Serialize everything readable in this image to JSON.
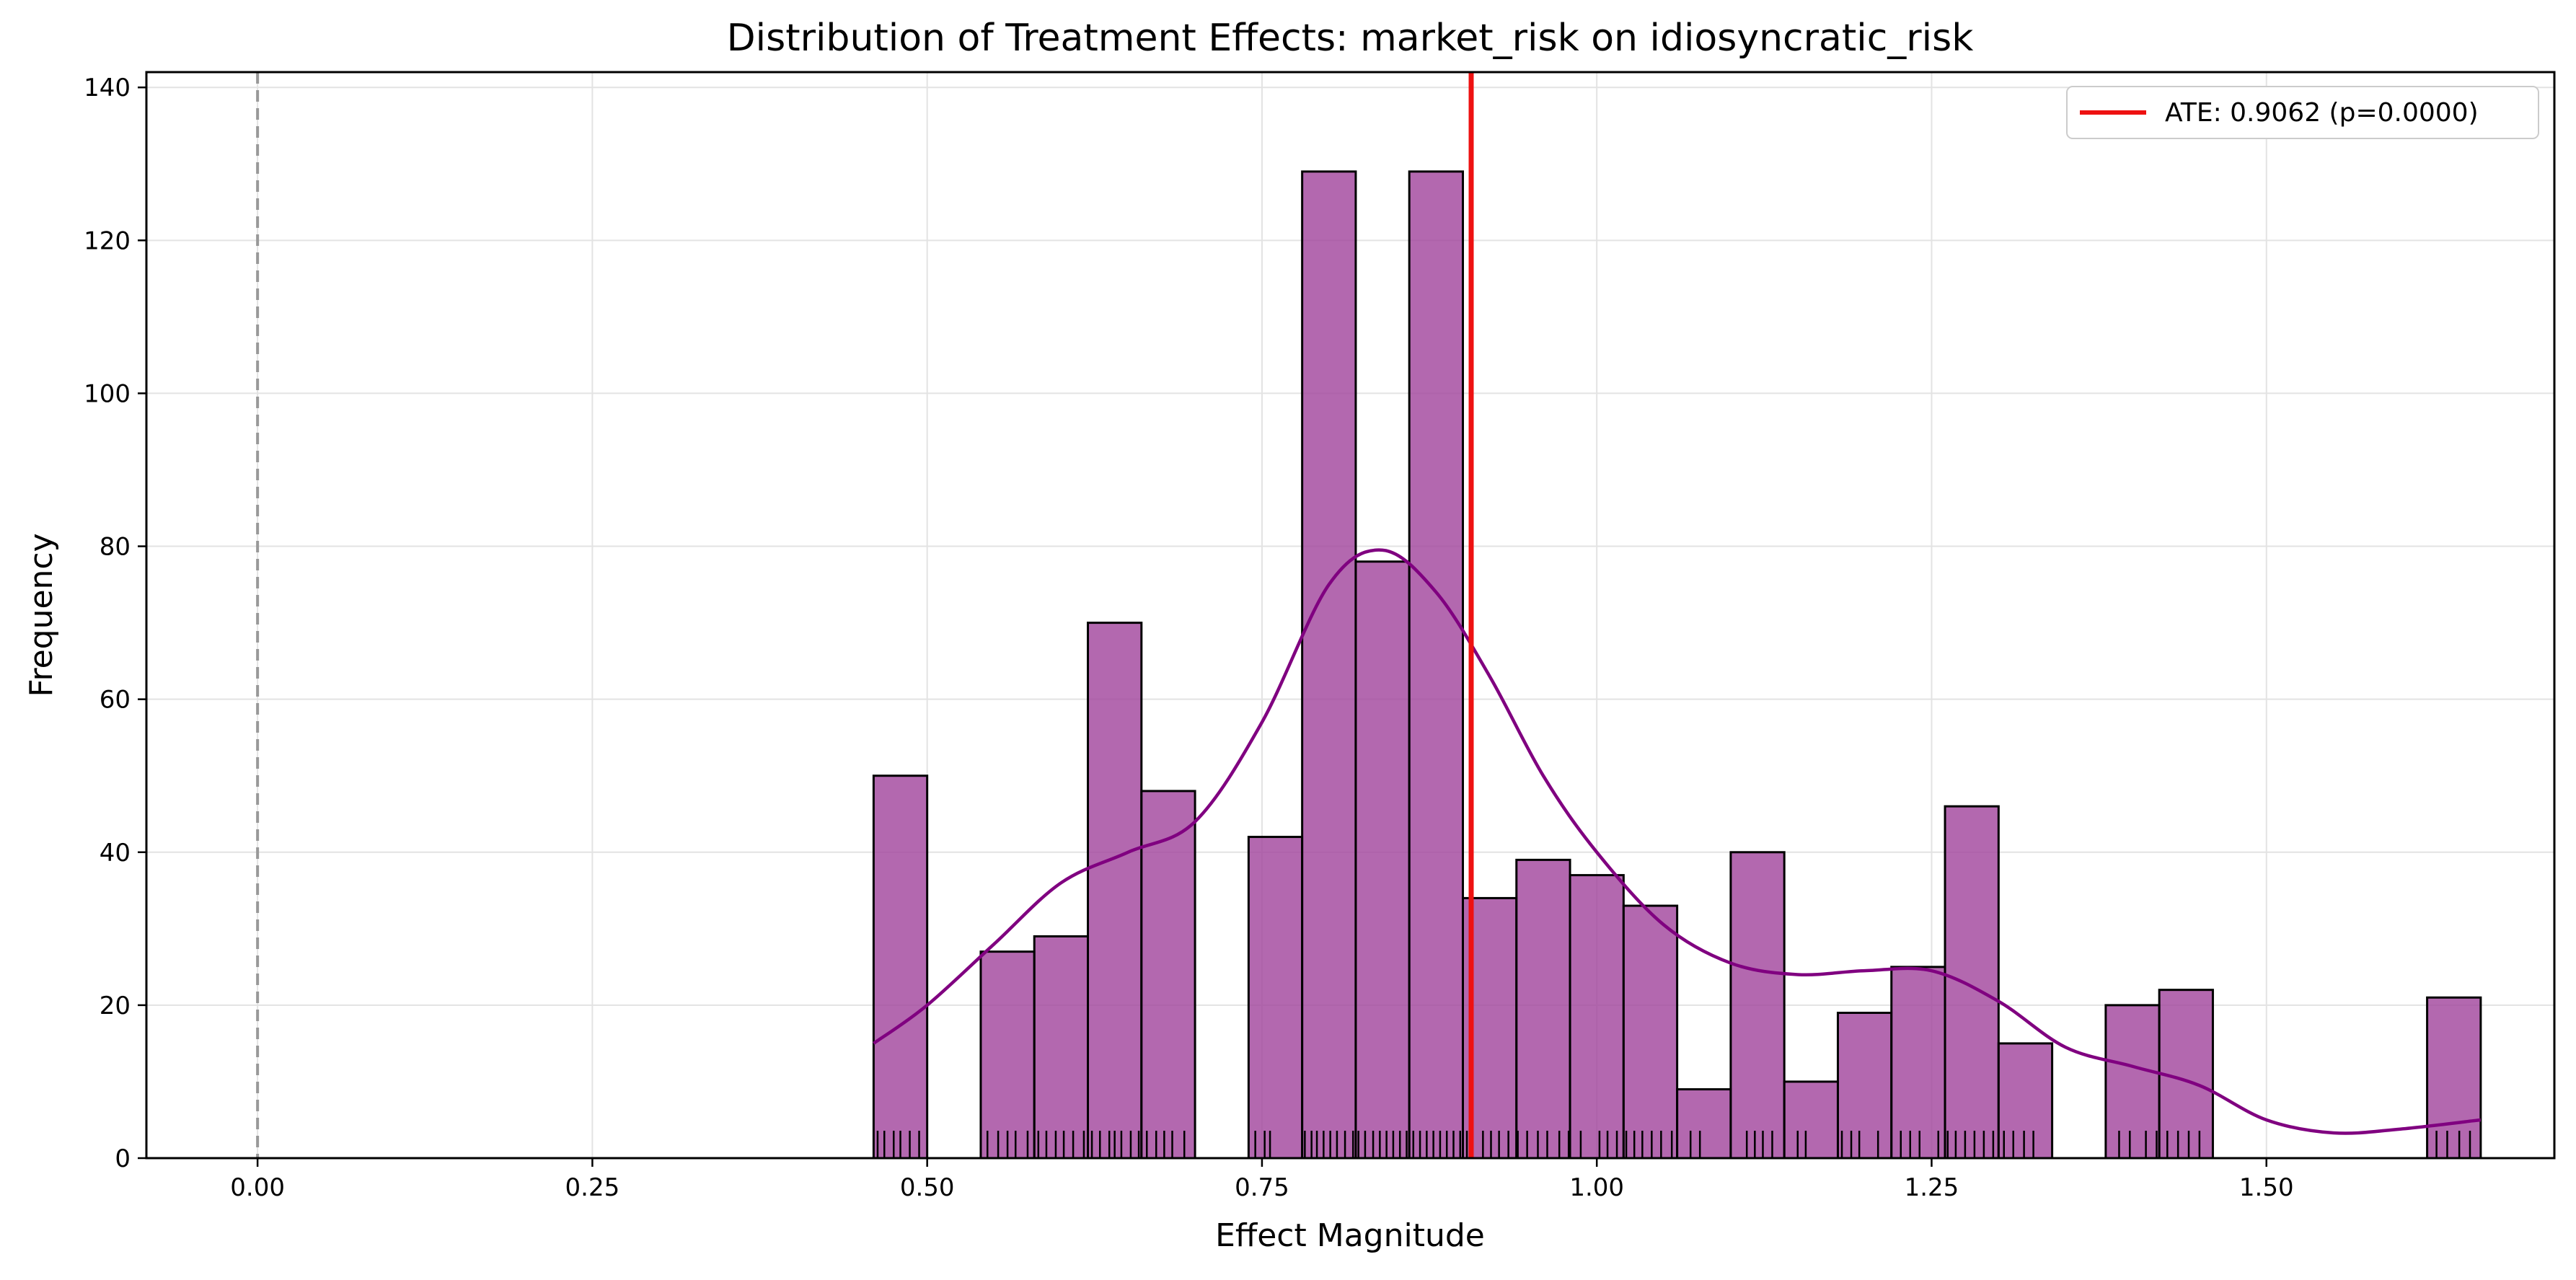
{
  "chart_data": {
    "type": "bar",
    "title": "Distribution of Treatment Effects: market_risk on idiosyncratic_risk",
    "xlabel": "Effect Magnitude",
    "ylabel": "Frequency",
    "xlim": [
      -0.083,
      1.715
    ],
    "ylim": [
      0,
      142
    ],
    "grid": true,
    "legend_placement": "top-right",
    "x_ticks": [
      0.0,
      0.25,
      0.5,
      0.75,
      1.0,
      1.25,
      1.5
    ],
    "x_tick_labels": [
      "0.00",
      "0.25",
      "0.50",
      "0.75",
      "1.00",
      "1.25",
      "1.50"
    ],
    "y_ticks": [
      0,
      20,
      40,
      60,
      80,
      100,
      120,
      140
    ],
    "y_tick_labels": [
      "0",
      "20",
      "40",
      "60",
      "80",
      "100",
      "120",
      "140"
    ],
    "bin_width": 0.04,
    "bins": [
      {
        "x0": 0.46,
        "value": 50
      },
      {
        "x0": 0.5,
        "value": 0
      },
      {
        "x0": 0.54,
        "value": 27
      },
      {
        "x0": 0.58,
        "value": 29
      },
      {
        "x0": 0.62,
        "value": 70
      },
      {
        "x0": 0.66,
        "value": 48
      },
      {
        "x0": 0.7,
        "value": 0
      },
      {
        "x0": 0.74,
        "value": 42
      },
      {
        "x0": 0.78,
        "value": 129
      },
      {
        "x0": 0.82,
        "value": 78
      },
      {
        "x0": 0.86,
        "value": 129
      },
      {
        "x0": 0.9,
        "value": 34
      },
      {
        "x0": 0.94,
        "value": 39
      },
      {
        "x0": 0.98,
        "value": 37
      },
      {
        "x0": 1.02,
        "value": 33
      },
      {
        "x0": 1.06,
        "value": 9
      },
      {
        "x0": 1.1,
        "value": 40
      },
      {
        "x0": 1.14,
        "value": 10
      },
      {
        "x0": 1.18,
        "value": 19
      },
      {
        "x0": 1.22,
        "value": 25
      },
      {
        "x0": 1.26,
        "value": 46
      },
      {
        "x0": 1.3,
        "value": 15
      },
      {
        "x0": 1.34,
        "value": 0
      },
      {
        "x0": 1.38,
        "value": 20
      },
      {
        "x0": 1.42,
        "value": 22
      },
      {
        "x0": 1.46,
        "value": 0
      },
      {
        "x0": 1.5,
        "value": 0
      },
      {
        "x0": 1.54,
        "value": 0
      },
      {
        "x0": 1.58,
        "value": 0
      },
      {
        "x0": 1.62,
        "value": 21
      }
    ],
    "kde_curve": {
      "x": [
        0.46,
        0.5,
        0.55,
        0.6,
        0.65,
        0.7,
        0.75,
        0.8,
        0.84,
        0.88,
        0.92,
        0.96,
        1.0,
        1.05,
        1.1,
        1.15,
        1.2,
        1.25,
        1.3,
        1.35,
        1.4,
        1.45,
        1.5,
        1.55,
        1.6,
        1.66
      ],
      "y": [
        15,
        20,
        28,
        36,
        40,
        44,
        57,
        75,
        79.5,
        74,
        63,
        50,
        40,
        30.5,
        25.5,
        24,
        24.5,
        24.5,
        20.5,
        14.5,
        12,
        9.5,
        5,
        3.3,
        3.8,
        5
      ]
    },
    "reference_line_zero": {
      "x": 0.0
    },
    "ate_line": {
      "x": 0.9062,
      "color": "#ee1111",
      "label": "ATE: 0.9062 (p=0.0000)"
    },
    "rug_x": [
      0.463,
      0.468,
      0.475,
      0.48,
      0.487,
      0.494,
      0.545,
      0.553,
      0.56,
      0.566,
      0.575,
      0.583,
      0.589,
      0.596,
      0.602,
      0.609,
      0.617,
      0.623,
      0.629,
      0.636,
      0.64,
      0.645,
      0.652,
      0.658,
      0.664,
      0.671,
      0.677,
      0.683,
      0.692,
      0.745,
      0.752,
      0.756,
      0.782,
      0.787,
      0.791,
      0.796,
      0.801,
      0.806,
      0.812,
      0.818,
      0.822,
      0.827,
      0.833,
      0.838,
      0.843,
      0.848,
      0.853,
      0.858,
      0.863,
      0.868,
      0.873,
      0.878,
      0.883,
      0.888,
      0.893,
      0.898,
      0.903,
      0.915,
      0.921,
      0.927,
      0.934,
      0.941,
      0.948,
      0.956,
      0.963,
      0.972,
      0.979,
      0.988,
      1.002,
      1.008,
      1.015,
      1.022,
      1.028,
      1.034,
      1.041,
      1.048,
      1.056,
      1.07,
      1.077,
      1.112,
      1.118,
      1.124,
      1.131,
      1.15,
      1.156,
      1.183,
      1.19,
      1.196,
      1.21,
      1.227,
      1.234,
      1.241,
      1.255,
      1.262,
      1.268,
      1.275,
      1.282,
      1.289,
      1.296,
      1.304,
      1.311,
      1.319,
      1.326,
      1.39,
      1.398,
      1.41,
      1.418,
      1.426,
      1.434,
      1.442,
      1.45,
      1.627,
      1.635,
      1.644,
      1.652
    ],
    "colors": {
      "bar_fill": "#a2479e",
      "bar_edge": "#000000",
      "kde": "#800080",
      "zero_line": "#999999",
      "grid": "#e3e3e3"
    }
  }
}
